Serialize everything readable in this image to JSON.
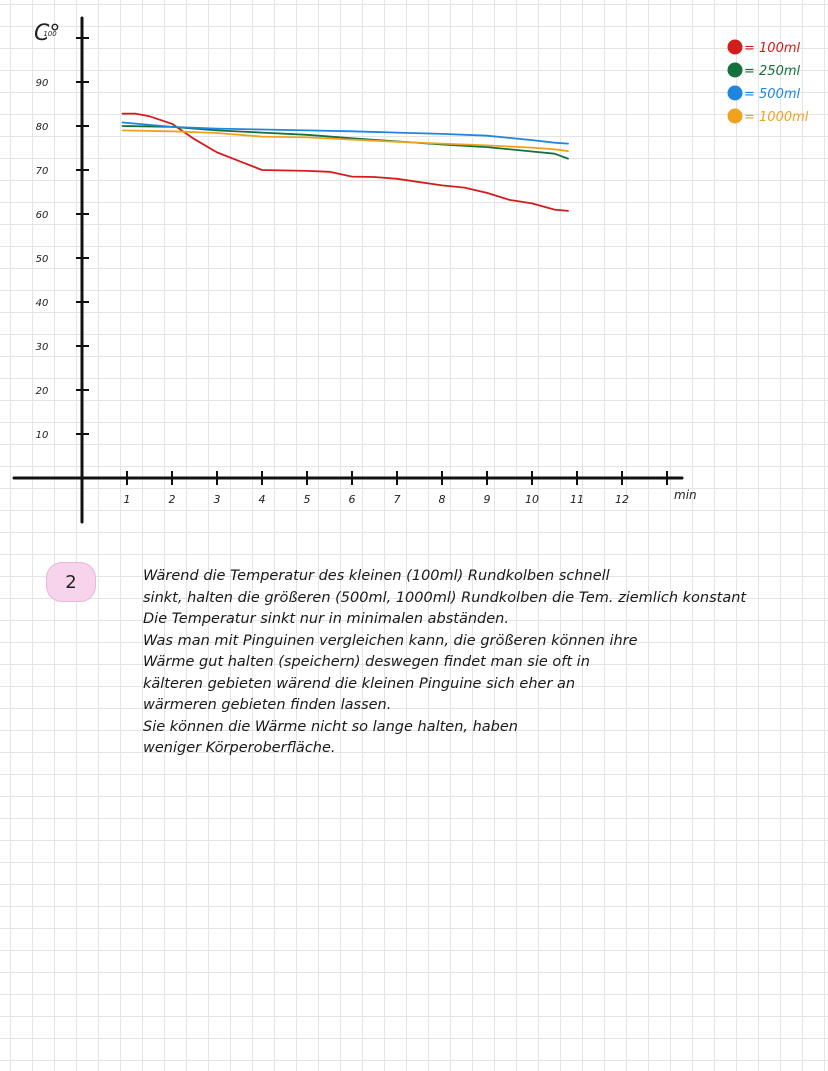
{
  "chart_data": {
    "type": "line",
    "title": "",
    "ylabel": "C°",
    "xlabel": "min",
    "xlim": [
      0,
      13
    ],
    "ylim": [
      0,
      100
    ],
    "x_ticks": [
      {
        "v": 1,
        "label": "1"
      },
      {
        "v": 2,
        "label": "2"
      },
      {
        "v": 3,
        "label": "3"
      },
      {
        "v": 4,
        "label": "4"
      },
      {
        "v": 5,
        "label": "5"
      },
      {
        "v": 6,
        "label": "6"
      },
      {
        "v": 7,
        "label": "7"
      },
      {
        "v": 8,
        "label": "8"
      },
      {
        "v": 9,
        "label": "9"
      },
      {
        "v": 10,
        "label": "10"
      },
      {
        "v": 11,
        "label": "11"
      },
      {
        "v": 12,
        "label": "12"
      },
      {
        "v": 13,
        "label": ""
      }
    ],
    "y_ticks": [
      {
        "v": 10,
        "label": "10"
      },
      {
        "v": 20,
        "label": "20"
      },
      {
        "v": 30,
        "label": "30"
      },
      {
        "v": 40,
        "label": "40"
      },
      {
        "v": 50,
        "label": "50"
      },
      {
        "v": 60,
        "label": "60"
      },
      {
        "v": 70,
        "label": "70"
      },
      {
        "v": 80,
        "label": "80"
      },
      {
        "v": 90,
        "label": "90"
      },
      {
        "v": 100,
        "label": "100"
      }
    ],
    "legend_position": "top-right",
    "series": [
      {
        "name": "= 100ml",
        "color": "#d41c1c",
        "x": [
          0.9,
          1.2,
          1.5,
          2.0,
          2.5,
          3.0,
          3.5,
          4.0,
          5.0,
          5.5,
          6.0,
          6.5,
          7.0,
          8.0,
          8.5,
          9.0,
          9.5,
          10.0,
          10.5,
          10.8
        ],
        "y": [
          82.8,
          82.8,
          82.2,
          80.5,
          77.0,
          74.0,
          72.0,
          70.0,
          69.8,
          69.6,
          68.5,
          68.4,
          68.0,
          66.5,
          66.0,
          64.8,
          63.2,
          62.4,
          61.0,
          60.7
        ]
      },
      {
        "name": "= 250ml",
        "color": "#14703c",
        "x": [
          0.9,
          2.0,
          3.0,
          4.0,
          5.0,
          6.0,
          7.0,
          8.0,
          9.0,
          10.0,
          10.5,
          10.8
        ],
        "y": [
          80.0,
          79.8,
          79.0,
          78.5,
          78.0,
          77.2,
          76.5,
          75.8,
          75.2,
          74.2,
          73.7,
          72.6
        ]
      },
      {
        "name": "= 500ml",
        "color": "#1f86e0",
        "x": [
          0.9,
          2.0,
          3.0,
          4.0,
          5.0,
          6.0,
          7.0,
          8.0,
          9.0,
          10.0,
          10.5,
          10.8
        ],
        "y": [
          80.8,
          79.8,
          79.4,
          79.2,
          79.0,
          78.8,
          78.5,
          78.2,
          77.8,
          76.8,
          76.2,
          76.0
        ]
      },
      {
        "name": "= 1000ml",
        "color": "#f0a21f",
        "x": [
          0.9,
          2.0,
          3.0,
          4.0,
          5.0,
          6.0,
          7.0,
          8.0,
          9.0,
          10.0,
          10.5,
          10.8
        ],
        "y": [
          79.0,
          78.8,
          78.4,
          77.6,
          77.4,
          76.9,
          76.4,
          76.0,
          75.6,
          75.1,
          74.7,
          74.3
        ]
      }
    ]
  },
  "task": {
    "number": "2"
  },
  "answer_lines": [
    "Wärend   die Temperatur des kleinen (100ml) Rundkolben   schnell",
    "sinkt, halten die   größeren (500ml, 1000ml) Rundkolben   die Tem. ziemlich konstant",
    "Die Temperatur sinkt nur   in minimalen   abständen.",
    "Was man   mit Pinguinen vergleichen kann, die   größeren können ihre",
    "Wärme gut halten   (speichern)   deswegen   findet   man sie   oft in",
    "kälteren gebieten   wärend   die kleinen   Pinguine   sich eher an",
    "wärmeren   gebieten   finden lassen.",
    "   Sie können   die   Wärme nicht   so lange   halten, haben",
    "   weniger Körperoberfläche."
  ]
}
